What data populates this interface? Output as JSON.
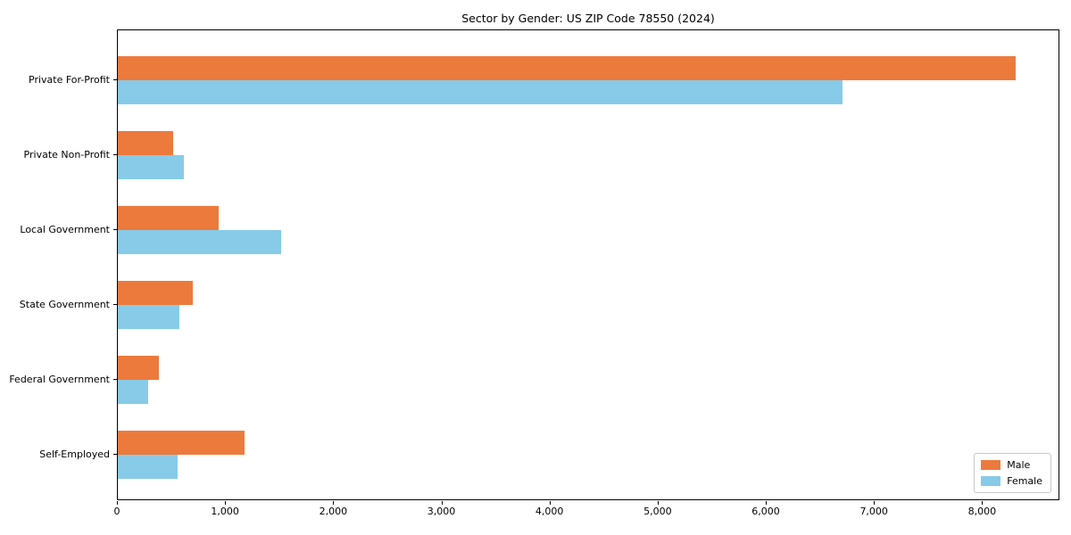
{
  "chart_data": {
    "type": "bar",
    "orientation": "horizontal",
    "title": "Sector by Gender: US ZIP Code 78550 (2024)",
    "categories": [
      "Private For-Profit",
      "Private Non-Profit",
      "Local Government",
      "State Government",
      "Federal Government",
      "Self-Employed"
    ],
    "series": [
      {
        "name": "Male",
        "color": "#EC7A3C",
        "values": [
          8300,
          510,
          930,
          690,
          380,
          1170
        ]
      },
      {
        "name": "Female",
        "color": "#87CBE8",
        "values": [
          6700,
          610,
          1510,
          570,
          280,
          550
        ]
      }
    ],
    "xlabel": "",
    "ylabel": "",
    "xlim": [
      0,
      8715
    ],
    "x_ticks": [
      0,
      1000,
      2000,
      3000,
      4000,
      5000,
      6000,
      7000,
      8000
    ],
    "x_tick_labels": [
      "0",
      "1,000",
      "2,000",
      "3,000",
      "4,000",
      "5,000",
      "6,000",
      "7,000",
      "8,000"
    ],
    "grid": false,
    "legend_position": "lower right",
    "axis_color": "#000000",
    "background_color": "#FFFFFF"
  }
}
